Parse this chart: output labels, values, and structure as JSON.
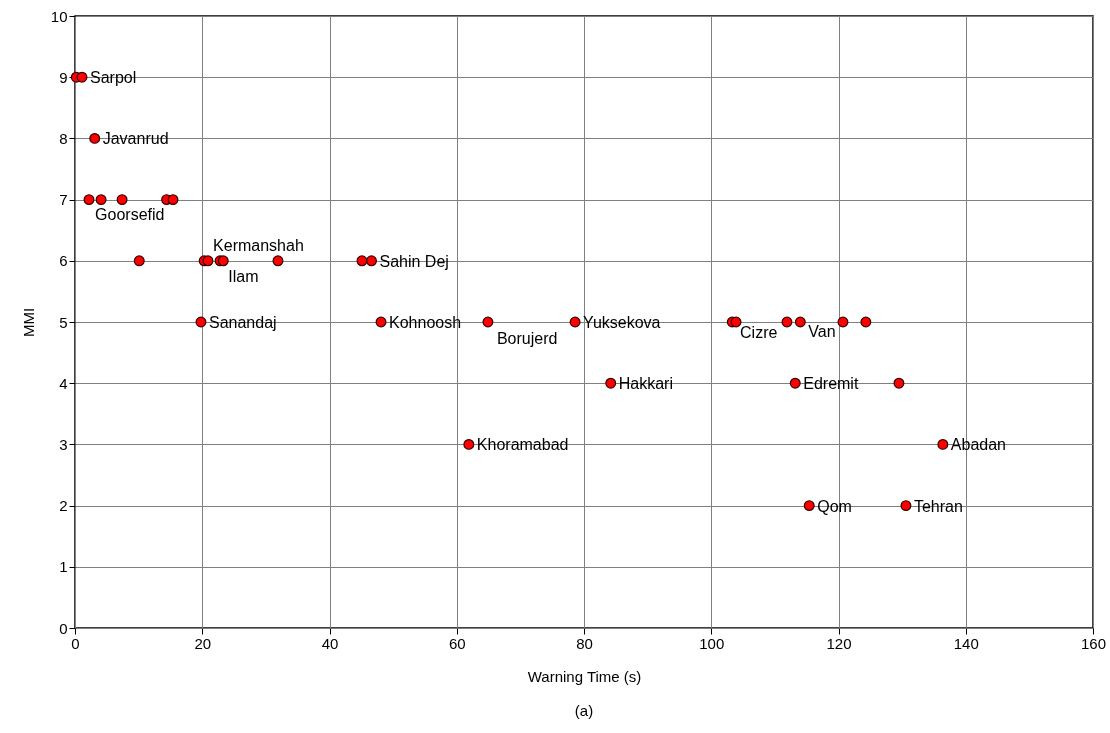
{
  "chart_data": {
    "type": "scatter",
    "xlabel": "Warning Time (s)",
    "ylabel": "MMI",
    "xlim": [
      0,
      160
    ],
    "xticks": [
      0,
      20,
      40,
      60,
      80,
      100,
      120,
      140,
      160
    ],
    "ylim": [
      0,
      10
    ],
    "yticks": [
      0,
      1,
      2,
      3,
      4,
      5,
      6,
      7,
      8,
      9,
      10
    ],
    "grid": true,
    "marker": "circle",
    "series": [
      {
        "color": "#ff0000",
        "x": [
          0.2,
          1.1,
          3.1,
          2.2,
          4.1,
          7.4,
          14.4,
          15.4,
          10.1,
          20.3,
          20.9,
          22.8,
          23.3,
          31.9,
          45.1,
          46.6,
          19.8,
          48.1,
          64.9,
          78.6,
          103.3,
          103.9,
          111.9,
          114.0,
          120.7,
          124.3,
          84.2,
          113.2,
          129.5,
          61.9,
          136.4,
          115.4,
          130.6
        ],
        "values": [
          9,
          9,
          8,
          7,
          7,
          7,
          7,
          7,
          6,
          6,
          6,
          6,
          6,
          6,
          6,
          6,
          5,
          5,
          5,
          5,
          5,
          5,
          5,
          5,
          5,
          5,
          4,
          4,
          4,
          3,
          3,
          2,
          2
        ]
      }
    ],
    "annotations": [
      {
        "text": "Sarpol",
        "x": 1.1,
        "y": 9
      },
      {
        "text": "Javanrud",
        "x": 3.1,
        "y": 8
      },
      {
        "text": "Goorsefid",
        "x": 4.1,
        "y": 7
      },
      {
        "text": "Kermanshah",
        "x": 22.8,
        "y": 6
      },
      {
        "text": "Ilam",
        "x": 23.3,
        "y": 6
      },
      {
        "text": "Sahin Dej",
        "x": 46.6,
        "y": 6
      },
      {
        "text": "Sanandaj",
        "x": 19.8,
        "y": 5
      },
      {
        "text": "Kohnoosh",
        "x": 48.1,
        "y": 5
      },
      {
        "text": "Borujerd",
        "x": 64.9,
        "y": 5
      },
      {
        "text": "Yuksekova",
        "x": 78.6,
        "y": 5
      },
      {
        "text": "Cizre",
        "x": 103.9,
        "y": 5
      },
      {
        "text": "Van",
        "x": 114.0,
        "y": 5
      },
      {
        "text": "Hakkari",
        "x": 84.2,
        "y": 4
      },
      {
        "text": "Edremit",
        "x": 113.2,
        "y": 4
      },
      {
        "text": "Khoramabad",
        "x": 61.9,
        "y": 3
      },
      {
        "text": "Abadan",
        "x": 136.4,
        "y": 3
      },
      {
        "text": "Qom",
        "x": 115.4,
        "y": 2
      },
      {
        "text": "Tehran",
        "x": 130.6,
        "y": 2
      },
      "(a)"
    ]
  }
}
